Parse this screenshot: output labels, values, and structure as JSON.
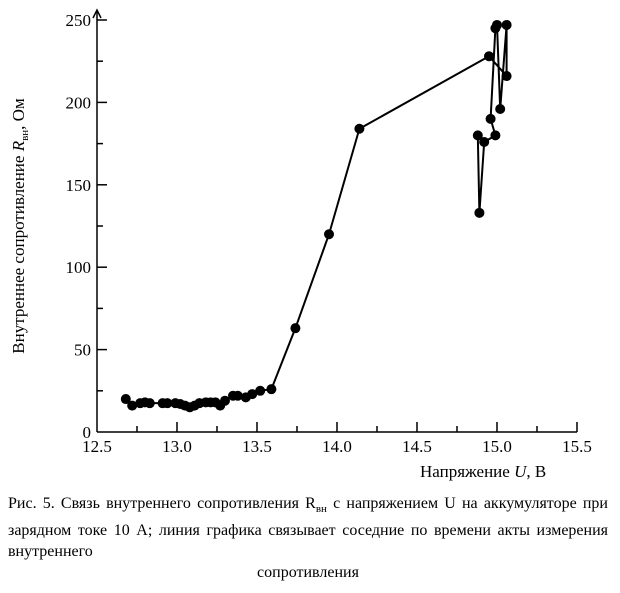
{
  "chart_data": {
    "type": "line",
    "title": "",
    "xlabel": "Напряжение U, В",
    "ylabel": "Внутреннее сопротивление R_вн, Ом",
    "xlim": [
      12.5,
      15.5
    ],
    "ylim": [
      0,
      250
    ],
    "xticks": [
      "12.5",
      "13.0",
      "13.5",
      "14.0",
      "14.5",
      "15.0",
      "15.5"
    ],
    "yticks": [
      "0",
      "50",
      "100",
      "150",
      "200",
      "250"
    ],
    "grid": false,
    "series": [
      {
        "name": "R_вн",
        "x": [
          12.68,
          12.72,
          12.77,
          12.8,
          12.83,
          12.91,
          12.94,
          12.99,
          13.02,
          13.05,
          13.08,
          13.11,
          13.14,
          13.18,
          13.21,
          13.24,
          13.27,
          13.3,
          13.35,
          13.38,
          13.43,
          13.47,
          13.52,
          13.59,
          13.74,
          13.95,
          14.14,
          14.95,
          15.06,
          15.06,
          15.02,
          15.0,
          14.99,
          14.96,
          14.99,
          14.92,
          14.89,
          14.88
        ],
        "y": [
          20,
          16,
          17.5,
          18,
          17.5,
          17.5,
          17.5,
          17.5,
          17,
          16,
          15,
          16,
          17.5,
          18,
          18,
          18,
          16,
          19,
          22,
          22,
          21,
          23,
          25,
          26,
          63,
          120,
          184,
          228,
          216,
          247,
          196,
          247,
          245,
          190,
          180,
          176,
          133,
          180
        ]
      }
    ]
  },
  "caption": {
    "text": "Рис. 5. Связь внутреннего сопротивления R",
    "sub": "вн",
    "text2": " с напряжением U на аккумуляторе при зарядном токе 10 А; линия графика связывает соседние по времени акты измерения внутреннего",
    "last": "сопротивления"
  }
}
